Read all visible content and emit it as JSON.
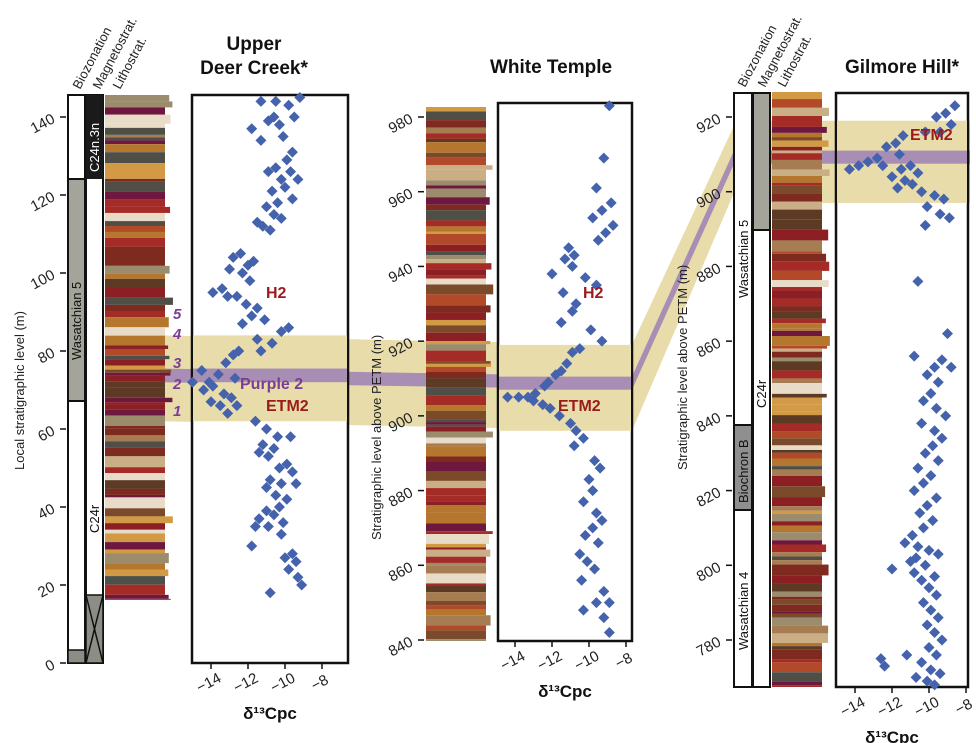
{
  "colors": {
    "etm2_band": "#e8dcaa",
    "purple2_band": "#a88eb5",
    "diamond": "#4563ad",
    "event_text": "#9b1b1b",
    "purple_text": "#7a3e96",
    "reversed_polarity": "#ffffff",
    "normal_polarity": "#1a1a1a",
    "wasatchian5_fill": "#a4a49a"
  },
  "column_headers": {
    "biozonation": "Biozonation",
    "magnetostrat": "Magnetostrat.",
    "lithostrat": "Lithostrat."
  },
  "labels": {
    "h2": "H2",
    "etm2": "ETM2",
    "purple2": "Purple 2",
    "levels": [
      "1",
      "2",
      "3",
      "4",
      "5"
    ]
  },
  "chart_data": [
    {
      "type": "scatter",
      "title": "Upper Deer Creek*",
      "xlabel": "δ¹³Cpc",
      "ylabel": "Local stratigraphic level (m)",
      "x_ticks": [
        -14,
        -12,
        -10,
        -8
      ],
      "y_ticks": [
        0,
        20,
        40,
        60,
        80,
        100,
        120,
        140
      ],
      "xlim": [
        -15.3,
        -7.5
      ],
      "ylim": [
        0,
        150
      ],
      "biozones": [
        "Wasatchian 5"
      ],
      "magnetochrons": [
        "C24n.3n",
        "C24r"
      ],
      "etm2_band_m": [
        62,
        84
      ],
      "purple2_band_m": [
        72,
        75.5
      ],
      "h2_level_m": 96,
      "etm2_level_m": 68,
      "purple2_level_m": 74,
      "points": [
        {
          "x": -8.8,
          "y": 147
        },
        {
          "x": -9.5,
          "y": 147
        },
        {
          "x": -10.2,
          "y": 146
        },
        {
          "x": -9.2,
          "y": 145
        },
        {
          "x": -12.2,
          "y": 146
        },
        {
          "x": -10.5,
          "y": 144
        },
        {
          "x": -11.3,
          "y": 144
        },
        {
          "x": -9.8,
          "y": 143
        },
        {
          "x": -10.6,
          "y": 140
        },
        {
          "x": -10.9,
          "y": 139
        },
        {
          "x": -10.3,
          "y": 138
        },
        {
          "x": -9.5,
          "y": 140
        },
        {
          "x": -11.8,
          "y": 137
        },
        {
          "x": -10.1,
          "y": 135
        },
        {
          "x": -11.3,
          "y": 134
        },
        {
          "x": -9.6,
          "y": 131
        },
        {
          "x": -9.9,
          "y": 129
        },
        {
          "x": -10.5,
          "y": 127
        },
        {
          "x": -9.7,
          "y": 126
        },
        {
          "x": -10.9,
          "y": 126
        },
        {
          "x": -10.2,
          "y": 124
        },
        {
          "x": -9.3,
          "y": 124
        },
        {
          "x": -10.0,
          "y": 122
        },
        {
          "x": -10.7,
          "y": 121
        },
        {
          "x": -9.6,
          "y": 119
        },
        {
          "x": -10.4,
          "y": 118
        },
        {
          "x": -11.0,
          "y": 117
        },
        {
          "x": -10.6,
          "y": 115
        },
        {
          "x": -11.5,
          "y": 113
        },
        {
          "x": -10.2,
          "y": 114
        },
        {
          "x": -11.2,
          "y": 112
        },
        {
          "x": -10.8,
          "y": 111
        },
        {
          "x": -12.4,
          "y": 105
        },
        {
          "x": -12.8,
          "y": 104
        },
        {
          "x": -11.7,
          "y": 103
        },
        {
          "x": -12.0,
          "y": 102
        },
        {
          "x": -13.0,
          "y": 101
        },
        {
          "x": -12.3,
          "y": 100
        },
        {
          "x": -11.9,
          "y": 98
        },
        {
          "x": -13.4,
          "y": 96
        },
        {
          "x": -13.9,
          "y": 95
        },
        {
          "x": -12.6,
          "y": 94
        },
        {
          "x": -13.1,
          "y": 94
        },
        {
          "x": -12.1,
          "y": 92
        },
        {
          "x": -11.5,
          "y": 91
        },
        {
          "x": -11.8,
          "y": 89
        },
        {
          "x": -11.1,
          "y": 88
        },
        {
          "x": -12.3,
          "y": 87
        },
        {
          "x": -9.8,
          "y": 86
        },
        {
          "x": -10.2,
          "y": 85
        },
        {
          "x": -11.5,
          "y": 83
        },
        {
          "x": -10.7,
          "y": 82
        },
        {
          "x": -12.5,
          "y": 80
        },
        {
          "x": -12.8,
          "y": 79
        },
        {
          "x": -11.3,
          "y": 80
        },
        {
          "x": -13.2,
          "y": 77
        },
        {
          "x": -14.5,
          "y": 75
        },
        {
          "x": -13.6,
          "y": 74
        },
        {
          "x": -12.7,
          "y": 73
        },
        {
          "x": -14.1,
          "y": 72
        },
        {
          "x": -15.0,
          "y": 72
        },
        {
          "x": -13.9,
          "y": 71
        },
        {
          "x": -14.4,
          "y": 70
        },
        {
          "x": -13.3,
          "y": 69
        },
        {
          "x": -12.9,
          "y": 68
        },
        {
          "x": -14.0,
          "y": 67
        },
        {
          "x": -13.5,
          "y": 66
        },
        {
          "x": -12.6,
          "y": 66
        },
        {
          "x": -13.1,
          "y": 64
        },
        {
          "x": -11.6,
          "y": 62
        },
        {
          "x": -11.0,
          "y": 60
        },
        {
          "x": -10.4,
          "y": 58
        },
        {
          "x": -9.7,
          "y": 58
        },
        {
          "x": -11.2,
          "y": 56
        },
        {
          "x": -10.6,
          "y": 55
        },
        {
          "x": -11.4,
          "y": 54
        },
        {
          "x": -10.9,
          "y": 53
        },
        {
          "x": -9.9,
          "y": 51
        },
        {
          "x": -10.3,
          "y": 50
        },
        {
          "x": -9.6,
          "y": 49
        },
        {
          "x": -10.8,
          "y": 47
        },
        {
          "x": -10.2,
          "y": 46
        },
        {
          "x": -9.4,
          "y": 46
        },
        {
          "x": -11.0,
          "y": 45
        },
        {
          "x": -10.5,
          "y": 43
        },
        {
          "x": -9.9,
          "y": 42
        },
        {
          "x": -10.3,
          "y": 40
        },
        {
          "x": -11.0,
          "y": 39
        },
        {
          "x": -10.6,
          "y": 38
        },
        {
          "x": -11.4,
          "y": 37
        },
        {
          "x": -10.1,
          "y": 36
        },
        {
          "x": -11.6,
          "y": 35
        },
        {
          "x": -10.9,
          "y": 35
        },
        {
          "x": -10.2,
          "y": 33
        },
        {
          "x": -11.8,
          "y": 30
        },
        {
          "x": -9.6,
          "y": 28
        },
        {
          "x": -10.0,
          "y": 27
        },
        {
          "x": -9.4,
          "y": 26
        },
        {
          "x": -9.8,
          "y": 24
        },
        {
          "x": -9.3,
          "y": 22
        },
        {
          "x": -9.1,
          "y": 20
        },
        {
          "x": -10.8,
          "y": 18
        }
      ]
    },
    {
      "type": "scatter",
      "title": "White Temple",
      "xlabel": "δ¹³Cpc",
      "ylabel": "Stratigraphic level  above PETM (m)",
      "x_ticks": [
        -14,
        -12,
        -10,
        -8
      ],
      "y_ticks": [
        840,
        860,
        880,
        900,
        920,
        940,
        960,
        980
      ],
      "xlim": [
        -15.8,
        -7.8
      ],
      "ylim": [
        839,
        985
      ],
      "etm2_band_m": [
        896,
        919
      ],
      "purple2_band_m": [
        907,
        910.5
      ],
      "h2_level_m": 932,
      "etm2_level_m": 903,
      "points": [
        {
          "x": -8.9,
          "y": 983
        },
        {
          "x": -9.2,
          "y": 969
        },
        {
          "x": -9.6,
          "y": 961
        },
        {
          "x": -8.8,
          "y": 957
        },
        {
          "x": -9.3,
          "y": 955
        },
        {
          "x": -9.8,
          "y": 953
        },
        {
          "x": -8.7,
          "y": 951
        },
        {
          "x": -9.1,
          "y": 949
        },
        {
          "x": -9.5,
          "y": 947
        },
        {
          "x": -11.1,
          "y": 945
        },
        {
          "x": -10.8,
          "y": 943
        },
        {
          "x": -11.3,
          "y": 942
        },
        {
          "x": -10.9,
          "y": 940
        },
        {
          "x": -12.0,
          "y": 938
        },
        {
          "x": -10.2,
          "y": 937
        },
        {
          "x": -9.6,
          "y": 935
        },
        {
          "x": -11.4,
          "y": 933
        },
        {
          "x": -10.7,
          "y": 930
        },
        {
          "x": -10.9,
          "y": 928
        },
        {
          "x": -11.5,
          "y": 925
        },
        {
          "x": -9.9,
          "y": 923
        },
        {
          "x": -9.3,
          "y": 920
        },
        {
          "x": -10.5,
          "y": 918
        },
        {
          "x": -10.9,
          "y": 917
        },
        {
          "x": -11.2,
          "y": 914
        },
        {
          "x": -11.5,
          "y": 912
        },
        {
          "x": -11.8,
          "y": 911
        },
        {
          "x": -12.2,
          "y": 909
        },
        {
          "x": -12.4,
          "y": 908
        },
        {
          "x": -12.9,
          "y": 906
        },
        {
          "x": -13.3,
          "y": 905
        },
        {
          "x": -13.8,
          "y": 905
        },
        {
          "x": -14.4,
          "y": 905
        },
        {
          "x": -13.0,
          "y": 904
        },
        {
          "x": -12.5,
          "y": 903
        },
        {
          "x": -12.1,
          "y": 902
        },
        {
          "x": -11.6,
          "y": 900
        },
        {
          "x": -11.0,
          "y": 898
        },
        {
          "x": -10.7,
          "y": 896
        },
        {
          "x": -10.3,
          "y": 894
        },
        {
          "x": -10.8,
          "y": 892
        },
        {
          "x": -9.7,
          "y": 888
        },
        {
          "x": -9.4,
          "y": 886
        },
        {
          "x": -10.0,
          "y": 883
        },
        {
          "x": -9.8,
          "y": 880
        },
        {
          "x": -10.3,
          "y": 877
        },
        {
          "x": -9.6,
          "y": 874
        },
        {
          "x": -9.3,
          "y": 872
        },
        {
          "x": -9.8,
          "y": 870
        },
        {
          "x": -10.2,
          "y": 868
        },
        {
          "x": -9.5,
          "y": 866
        },
        {
          "x": -10.5,
          "y": 863
        },
        {
          "x": -10.1,
          "y": 861
        },
        {
          "x": -9.7,
          "y": 859
        },
        {
          "x": -10.4,
          "y": 856
        },
        {
          "x": -9.2,
          "y": 853
        },
        {
          "x": -9.6,
          "y": 850
        },
        {
          "x": -8.9,
          "y": 850
        },
        {
          "x": -10.3,
          "y": 848
        },
        {
          "x": -9.2,
          "y": 846
        },
        {
          "x": -8.9,
          "y": 842
        },
        {
          "x": -8.8,
          "y": 840
        }
      ]
    },
    {
      "type": "scatter",
      "title": "Gilmore Hill*",
      "xlabel": "δ¹³Cpc",
      "ylabel": "Stratigraphic level  above PETM (m)",
      "x_ticks": [
        -14,
        -12,
        -10,
        -8
      ],
      "y_ticks": [
        780,
        800,
        820,
        840,
        860,
        880,
        900,
        920
      ],
      "xlim": [
        -15.3,
        -7.8
      ],
      "ylim": [
        766,
        927
      ],
      "biozones": [
        "Wasatchian 5",
        "Biochron B",
        "Wasatchian 4"
      ],
      "magnetochrons": [
        "C24r"
      ],
      "etm2_band_m": [
        897,
        919
      ],
      "purple2_band_m": [
        907.5,
        911
      ],
      "etm2_level_m": 913,
      "points": [
        {
          "x": -8.6,
          "y": 923
        },
        {
          "x": -9.1,
          "y": 921
        },
        {
          "x": -9.6,
          "y": 920
        },
        {
          "x": -8.8,
          "y": 918
        },
        {
          "x": -9.4,
          "y": 916
        },
        {
          "x": -10.2,
          "y": 916
        },
        {
          "x": -11.4,
          "y": 915
        },
        {
          "x": -11.8,
          "y": 913
        },
        {
          "x": -12.3,
          "y": 912
        },
        {
          "x": -11.6,
          "y": 910
        },
        {
          "x": -12.8,
          "y": 909
        },
        {
          "x": -13.3,
          "y": 908
        },
        {
          "x": -13.8,
          "y": 907
        },
        {
          "x": -14.3,
          "y": 906
        },
        {
          "x": -12.5,
          "y": 907
        },
        {
          "x": -11.5,
          "y": 906
        },
        {
          "x": -11.0,
          "y": 907
        },
        {
          "x": -10.6,
          "y": 905
        },
        {
          "x": -12.0,
          "y": 904
        },
        {
          "x": -11.3,
          "y": 903
        },
        {
          "x": -10.9,
          "y": 902
        },
        {
          "x": -11.7,
          "y": 901
        },
        {
          "x": -10.4,
          "y": 900
        },
        {
          "x": -9.7,
          "y": 899
        },
        {
          "x": -9.2,
          "y": 898
        },
        {
          "x": -10.1,
          "y": 896
        },
        {
          "x": -9.4,
          "y": 894
        },
        {
          "x": -8.9,
          "y": 893
        },
        {
          "x": -10.2,
          "y": 891
        },
        {
          "x": -10.6,
          "y": 876
        },
        {
          "x": -9.0,
          "y": 862
        },
        {
          "x": -10.8,
          "y": 856
        },
        {
          "x": -9.3,
          "y": 855
        },
        {
          "x": -9.7,
          "y": 853
        },
        {
          "x": -10.1,
          "y": 851
        },
        {
          "x": -8.8,
          "y": 853
        },
        {
          "x": -9.5,
          "y": 849
        },
        {
          "x": -9.9,
          "y": 846
        },
        {
          "x": -10.3,
          "y": 844
        },
        {
          "x": -9.6,
          "y": 842
        },
        {
          "x": -9.1,
          "y": 840
        },
        {
          "x": -10.4,
          "y": 838
        },
        {
          "x": -9.7,
          "y": 836
        },
        {
          "x": -9.3,
          "y": 834
        },
        {
          "x": -9.8,
          "y": 832
        },
        {
          "x": -10.2,
          "y": 830
        },
        {
          "x": -9.5,
          "y": 828
        },
        {
          "x": -10.6,
          "y": 826
        },
        {
          "x": -9.9,
          "y": 824
        },
        {
          "x": -10.3,
          "y": 822
        },
        {
          "x": -10.8,
          "y": 820
        },
        {
          "x": -9.6,
          "y": 818
        },
        {
          "x": -10.1,
          "y": 816
        },
        {
          "x": -10.5,
          "y": 814
        },
        {
          "x": -9.8,
          "y": 812
        },
        {
          "x": -10.3,
          "y": 810
        },
        {
          "x": -10.9,
          "y": 808
        },
        {
          "x": -11.3,
          "y": 806
        },
        {
          "x": -10.6,
          "y": 805
        },
        {
          "x": -10.0,
          "y": 804
        },
        {
          "x": -9.5,
          "y": 803
        },
        {
          "x": -10.7,
          "y": 802
        },
        {
          "x": -11.0,
          "y": 801
        },
        {
          "x": -10.2,
          "y": 800
        },
        {
          "x": -12.0,
          "y": 799
        },
        {
          "x": -10.8,
          "y": 798
        },
        {
          "x": -9.7,
          "y": 797
        },
        {
          "x": -10.4,
          "y": 796
        },
        {
          "x": -10.0,
          "y": 794
        },
        {
          "x": -9.6,
          "y": 792
        },
        {
          "x": -10.3,
          "y": 790
        },
        {
          "x": -9.9,
          "y": 788
        },
        {
          "x": -9.5,
          "y": 786
        },
        {
          "x": -10.1,
          "y": 784
        },
        {
          "x": -9.7,
          "y": 782
        },
        {
          "x": -9.3,
          "y": 780
        },
        {
          "x": -10.0,
          "y": 778
        },
        {
          "x": -9.6,
          "y": 776
        },
        {
          "x": -11.2,
          "y": 776
        },
        {
          "x": -12.6,
          "y": 775
        },
        {
          "x": -12.4,
          "y": 773
        },
        {
          "x": -10.4,
          "y": 774
        },
        {
          "x": -9.9,
          "y": 772
        },
        {
          "x": -9.4,
          "y": 771
        },
        {
          "x": -10.7,
          "y": 770
        },
        {
          "x": -10.1,
          "y": 769
        },
        {
          "x": -9.7,
          "y": 768
        },
        {
          "x": -10.4,
          "y": 767
        }
      ]
    }
  ]
}
